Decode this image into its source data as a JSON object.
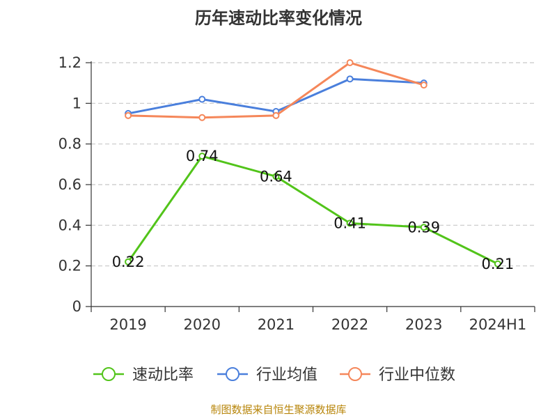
{
  "chart_data": {
    "type": "line",
    "title": "历年速动比率变化情况",
    "categories": [
      "2019",
      "2020",
      "2021",
      "2022",
      "2023",
      "2024H1"
    ],
    "ylim": [
      0,
      1.2
    ],
    "yticks": [
      "0",
      "0.2",
      "0.4",
      "0.6",
      "0.8",
      "1",
      "1.2"
    ],
    "grid": true,
    "legend_position": "bottom",
    "series": [
      {
        "name": "速动比率",
        "color": "#52c41a",
        "values": [
          0.22,
          0.74,
          0.64,
          0.41,
          0.39,
          0.21
        ],
        "labels": [
          "0.22",
          "0.74",
          "0.64",
          "0.41",
          "0.39",
          "0.21"
        ]
      },
      {
        "name": "行业均值",
        "color": "#4a7fdc",
        "values": [
          0.95,
          1.02,
          0.96,
          1.12,
          1.1,
          null
        ]
      },
      {
        "name": "行业中位数",
        "color": "#f5875a",
        "values": [
          0.94,
          0.93,
          0.94,
          1.2,
          1.09,
          null
        ]
      }
    ]
  },
  "source": "制图数据来自恒生聚源数据库"
}
